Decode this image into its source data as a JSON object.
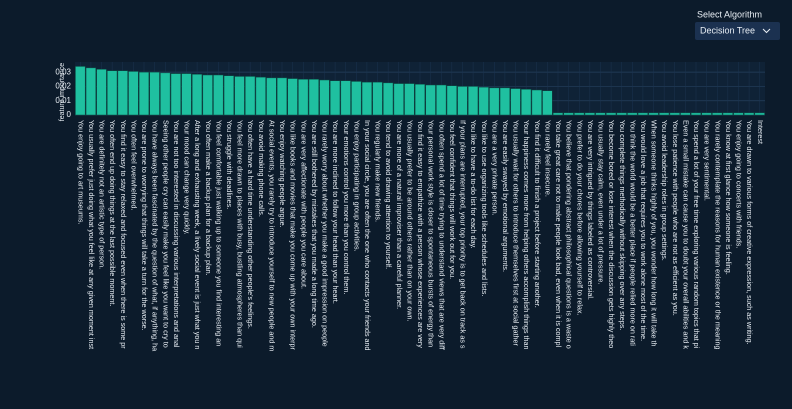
{
  "dropdown": {
    "label": "Select Algorithm",
    "value": "Decision Tree"
  },
  "chart_data": {
    "type": "bar",
    "ylabel": "feature importance",
    "color": "#1fc0a0",
    "ylim": [
      0,
      0.035
    ],
    "yticks": [
      0,
      0.01,
      0.02,
      0.03
    ],
    "grid": true,
    "categories": [
      "You enjoy going to art museums.",
      "You usually prefer just doing what you feel like at any given moment inst",
      "You are definitely not an artistic type of person.",
      "You often end up doing things at the last possible moment.",
      "You find it easy to stay relaxed and focused even when there is some pr",
      "You often feel overwhelmed.",
      "You are prone to worrying that things will take a turn for the worse.",
      "You have always been fascinated by the question of what, if anything, ha",
      "Seeing other people cry can easily make you feel like you want to cry to",
      "You are not too interested in discussing various interpretations and anal",
      "Your mood can change very quickly.",
      "After a long and exhausting week, a lively social event is just what you n",
      "You often make a backup plan for a backup plan.",
      "You feel comfortable just walking up to someone you find interesting an",
      "You struggle with deadlines.",
      "You feel more drawn to places with busy, bustling atmospheres than qui",
      "You often have a hard time understanding other people's feelings.",
      "You avoid making phone calls.",
      "At social events, you rarely try to introduce yourself to new people and m",
      "You enjoy watching people argue.",
      "You like books and movies that make you come up with your own interpr",
      "You are very affectionate with people you care about.",
      "You are still bothered by mistakes that you made a long time ago.",
      "You rarely worry about whether you make a good impression on people",
      "You are more inclined to follow your head than your heart.",
      "Your emotions control you more than you control them.",
      "You enjoy participating in group activities.",
      "In your social circle, you are often the one who contacts your friends and",
      "You regularly make new friends.",
      "You tend to avoid drawing attention to yourself.",
      "You are more of a natural improviser than a careful planner.",
      "You usually prefer to be around others rather than on your own.",
      "You find it easy to empathize with a person whose experiences are very",
      "Your personal work style is closer to spontaneous bursts of energy than",
      "You often spend a lot of time trying to understand views that are very diff",
      "You feel confident that things will work out for you.",
      "If your plans are interrupted, your top priority is to get back on track as s",
      "You like to have a to-do list for each day.",
      "You like to use organizing tools like schedules and lists.",
      "You are a very private person.",
      "You are easily swayed by emotional arguments.",
      "You usually wait for others to introduce themselves first at social gather",
      "Your happiness comes more from helping others accomplish things than",
      "You find it difficult to finish a project before starting another.",
      "You rarely feel insecure.",
      "You take great care not to make people look bad, even when it is compl",
      "You believe that pondering abstract philosophical questions is a waste o",
      "You prefer to do your chores before allowing yourself to relax.",
      "You are very intrigued by things labeled as controversial.",
      "You usually stay calm, even under a lot of pressure.",
      "You become bored or lose interest when the discussion gets highly theo",
      "You complete things methodically without skipping over any steps.",
      "You think the world would be a better place if people relied more on rati",
      "You would love a job that requires you to work alone most of the time.",
      "When someone thinks highly of you, you wonder how long it will take th",
      "You avoid leadership roles in group settings.",
      "You lose patience with people who are not as efficient as you.",
      "Even a small mistake can cause you to doubt your overall abilities and k",
      "You spend a lot of your free time exploring various random topics that pi",
      "You are very sentimental.",
      "You rarely contemplate the reasons for human existence or the meaning",
      "You know at first glance how someone is feeling.",
      "You enjoy going to concerts with friends.",
      "You are drawn to various forms of creative expression, such as writing.",
      "Interest"
    ],
    "values": [
      0.034,
      0.033,
      0.032,
      0.031,
      0.031,
      0.0305,
      0.03,
      0.03,
      0.0295,
      0.029,
      0.029,
      0.0285,
      0.028,
      0.028,
      0.0275,
      0.027,
      0.027,
      0.0265,
      0.026,
      0.026,
      0.0255,
      0.025,
      0.025,
      0.0245,
      0.024,
      0.024,
      0.0235,
      0.023,
      0.023,
      0.0225,
      0.022,
      0.022,
      0.0215,
      0.021,
      0.021,
      0.0205,
      0.02,
      0.02,
      0.0195,
      0.019,
      0.019,
      0.0185,
      0.018,
      0.0175,
      0.017,
      0.0015,
      0.0015,
      0.0015,
      0.0015,
      0.0015,
      0.0015,
      0.0015,
      0.0015,
      0.0015,
      0.0015,
      0.0015,
      0.0015,
      0.0015,
      0.0015,
      0.0015,
      0.0015,
      0.0015,
      0.0015,
      0.0015,
      0.0015
    ]
  }
}
